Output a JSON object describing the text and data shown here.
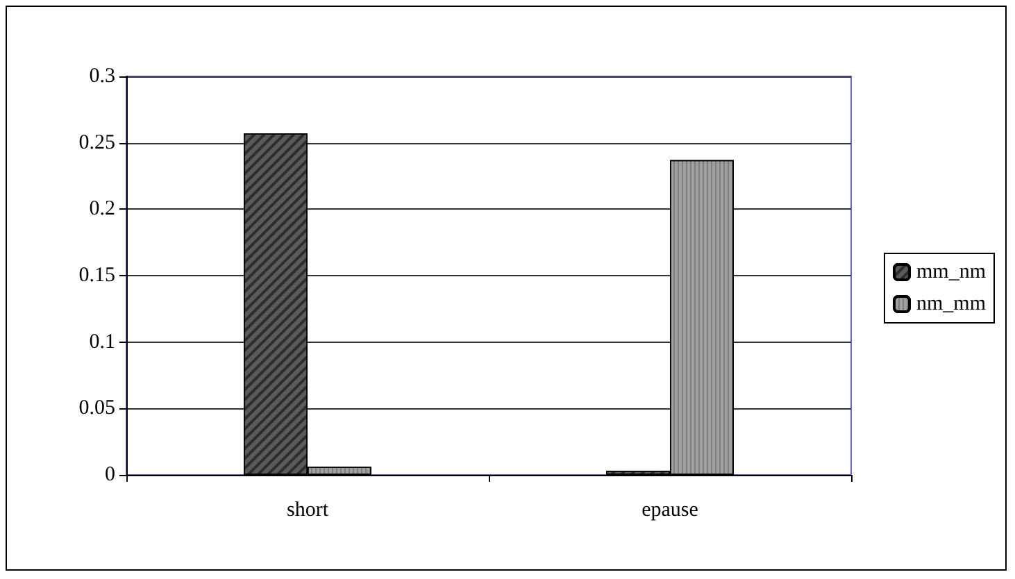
{
  "chart_data": {
    "type": "bar",
    "categories": [
      "short",
      "epause"
    ],
    "series": [
      {
        "name": "mm_nm",
        "color": "#5a5a5a",
        "values": [
          0.257,
          0.003
        ]
      },
      {
        "name": "nm_mm",
        "color": "#a0a0a0",
        "values": [
          0.006,
          0.237
        ]
      }
    ],
    "ylim": [
      0,
      0.3
    ],
    "yticks": [
      0,
      0.05,
      0.1,
      0.15,
      0.2,
      0.25,
      0.3
    ],
    "grid": "y",
    "legend": "right"
  }
}
